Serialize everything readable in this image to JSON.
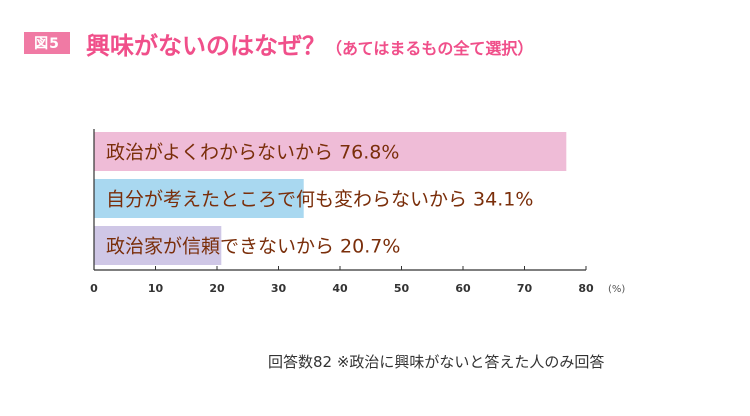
{
  "header": {
    "badge": "図5",
    "title": "興味がないのはなぜ？",
    "subtitle": "（あてはまるもの全て選択）"
  },
  "chart_data": {
    "type": "bar",
    "orientation": "horizontal",
    "categories": [
      "政治がよくわからないから",
      "自分が考えたところで何も変わらないから",
      "政治家が信頼できないから"
    ],
    "values": [
      76.8,
      34.1,
      20.7
    ],
    "value_labels": [
      "76.8%",
      "34.1%",
      "20.7%"
    ],
    "bar_colors": [
      "#efbcd7",
      "#a9d8f0",
      "#cfc7e6"
    ],
    "label_color": "#7a2e0a",
    "xlim": [
      0,
      80
    ],
    "xticks": [
      0,
      10,
      20,
      30,
      40,
      50,
      60,
      70,
      80
    ],
    "x_unit": "(%)",
    "grid": false
  },
  "footnote": "回答数82 ※政治に興味がないと答えた人のみ回答"
}
